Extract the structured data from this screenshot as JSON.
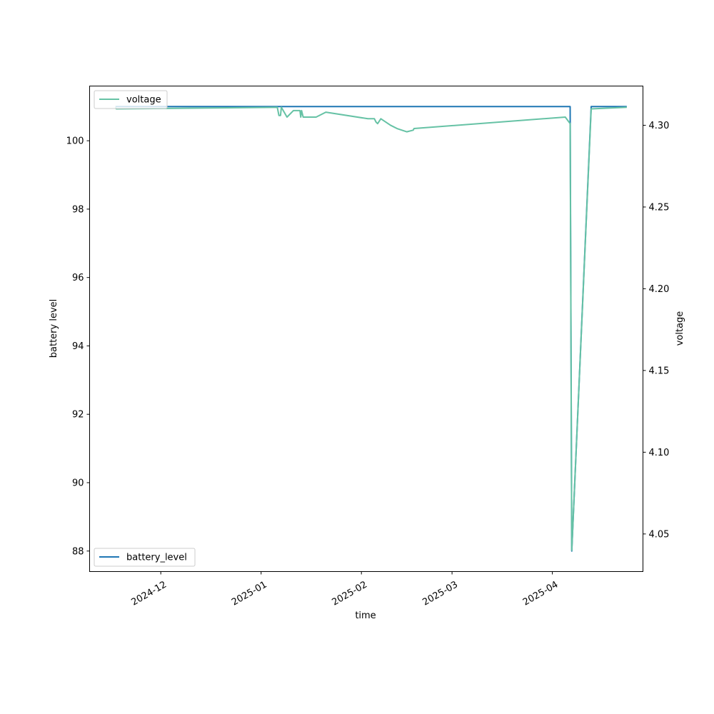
{
  "chart_data": {
    "type": "line",
    "title": "",
    "xlabel": "time",
    "ylabel_left": "battery level",
    "ylabel_right": "voltage",
    "x_axis": {
      "type": "date",
      "range": [
        "2024-11-09",
        "2025-04-29"
      ],
      "ticks": [
        "2024-12-01",
        "2025-01-01",
        "2025-02-01",
        "2025-03-01",
        "2025-04-01"
      ],
      "tick_labels": [
        "2024-12",
        "2025-01",
        "2025-02",
        "2025-03",
        "2025-04"
      ]
    },
    "y_left": {
      "range": [
        87.4,
        101.6
      ],
      "ticks": [
        88,
        90,
        92,
        94,
        96,
        98,
        100
      ],
      "tick_labels": [
        "88",
        "90",
        "92",
        "94",
        "96",
        "98",
        "100"
      ]
    },
    "y_right": {
      "range": [
        4.027,
        4.324
      ],
      "ticks": [
        4.05,
        4.1,
        4.15,
        4.2,
        4.25,
        4.3
      ],
      "tick_labels": [
        "4.05",
        "4.10",
        "4.15",
        "4.20",
        "4.25",
        "4.30"
      ]
    },
    "grid": false,
    "series": [
      {
        "name": "battery_level",
        "axis": "left",
        "color": "#1f77b4",
        "legend_position": "lower-left",
        "points": [
          [
            "2024-11-17",
            101
          ],
          [
            "2025-04-06",
            101
          ],
          [
            "2025-04-06T12:00",
            101
          ],
          [
            "2025-04-07",
            88
          ],
          [
            "2025-04-13",
            101
          ],
          [
            "2025-04-24",
            101
          ]
        ]
      },
      {
        "name": "voltage",
        "axis": "right",
        "color": "#66c2a5",
        "legend_position": "upper-left",
        "points": [
          [
            "2024-11-17",
            4.311
          ],
          [
            "2024-11-17T06:00",
            4.31
          ],
          [
            "2025-01-06",
            4.311
          ],
          [
            "2025-01-06T12:00",
            4.306
          ],
          [
            "2025-01-07",
            4.306
          ],
          [
            "2025-01-07T06:00",
            4.311
          ],
          [
            "2025-01-09",
            4.305
          ],
          [
            "2025-01-11",
            4.309
          ],
          [
            "2025-01-13",
            4.309
          ],
          [
            "2025-01-13T06:00",
            4.305
          ],
          [
            "2025-01-13T12:00",
            4.309
          ],
          [
            "2025-01-14",
            4.305
          ],
          [
            "2025-01-18",
            4.305
          ],
          [
            "2025-01-21",
            4.308
          ],
          [
            "2025-02-03",
            4.304
          ],
          [
            "2025-02-05",
            4.304
          ],
          [
            "2025-02-05T12:00",
            4.302
          ],
          [
            "2025-02-06",
            4.301
          ],
          [
            "2025-02-07",
            4.304
          ],
          [
            "2025-02-10",
            4.3
          ],
          [
            "2025-02-12",
            4.298
          ],
          [
            "2025-02-15",
            4.296
          ],
          [
            "2025-02-17",
            4.297
          ],
          [
            "2025-02-17T06:00",
            4.298
          ],
          [
            "2025-04-05",
            4.305
          ],
          [
            "2025-04-06T12:00",
            4.301
          ],
          [
            "2025-04-07",
            4.04
          ],
          [
            "2025-04-13",
            4.31
          ],
          [
            "2025-04-24",
            4.311
          ]
        ]
      }
    ]
  }
}
